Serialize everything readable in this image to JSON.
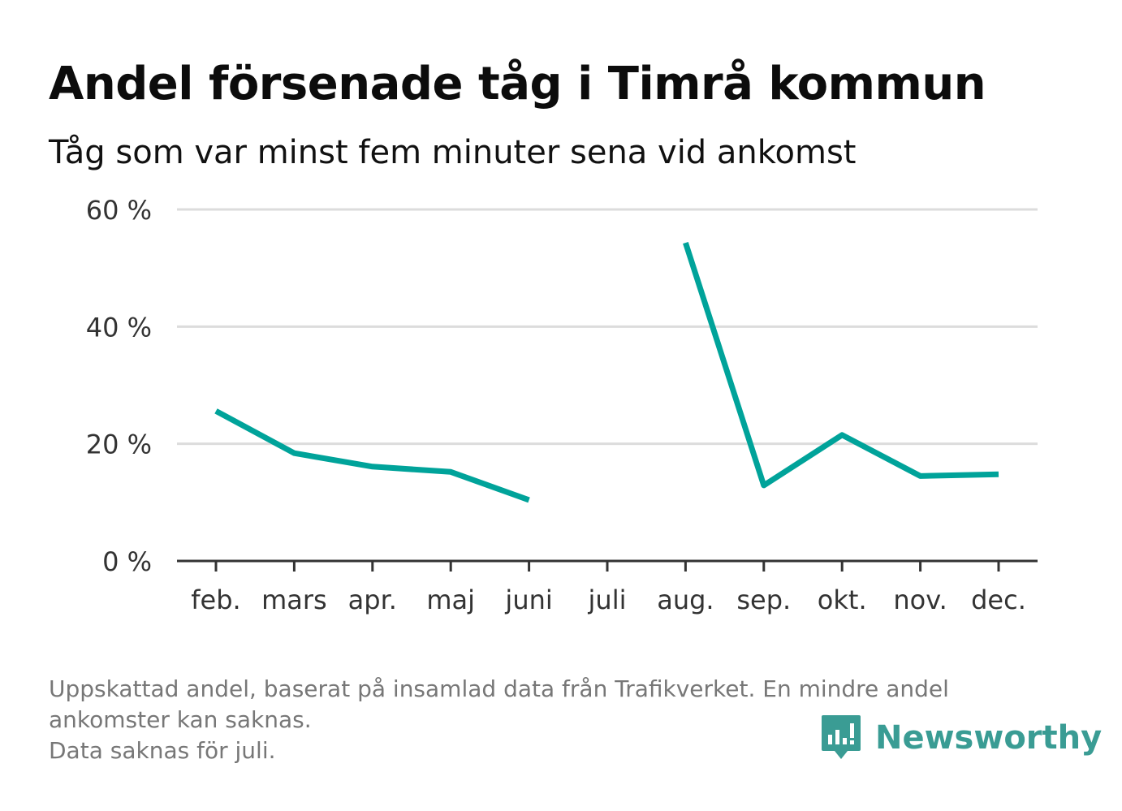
{
  "header": {
    "title": "Andel försenade tåg i Timrå kommun",
    "subtitle": "Tåg som var minst fem minuter sena vid ankomst"
  },
  "chart_data": {
    "type": "line",
    "title": "Andel försenade tåg i Timrå kommun",
    "subtitle": "Tåg som var minst fem minuter sena vid ankomst",
    "xlabel": "",
    "ylabel": "",
    "categories": [
      "feb.",
      "mars",
      "apr.",
      "maj",
      "juni",
      "juli",
      "aug.",
      "sep.",
      "okt.",
      "nov.",
      "dec."
    ],
    "series": [
      {
        "values": [
          25.6,
          18.4,
          16.1,
          15.2,
          10.4,
          null,
          54.3,
          12.9,
          21.5,
          14.5,
          14.8
        ]
      }
    ],
    "ylim": [
      0,
      60
    ],
    "yticks": [
      0,
      20,
      40,
      60
    ],
    "ytick_labels": [
      "0 %",
      "20 %",
      "40 %",
      "60 %"
    ],
    "grid": true,
    "line_color": "#00a39a",
    "grid_color": "#dcdcdc",
    "axis_color": "#333333"
  },
  "footnote": {
    "line1": "Uppskattad andel, baserat på insamlad data från Trafikverket. En mindre andel",
    "line2": "ankomster kan saknas.",
    "line3": "Data saknas för juli."
  },
  "brand": {
    "name": "Newsworthy",
    "icon": "newsworthy-logo-icon",
    "color": "#3a9c94"
  }
}
